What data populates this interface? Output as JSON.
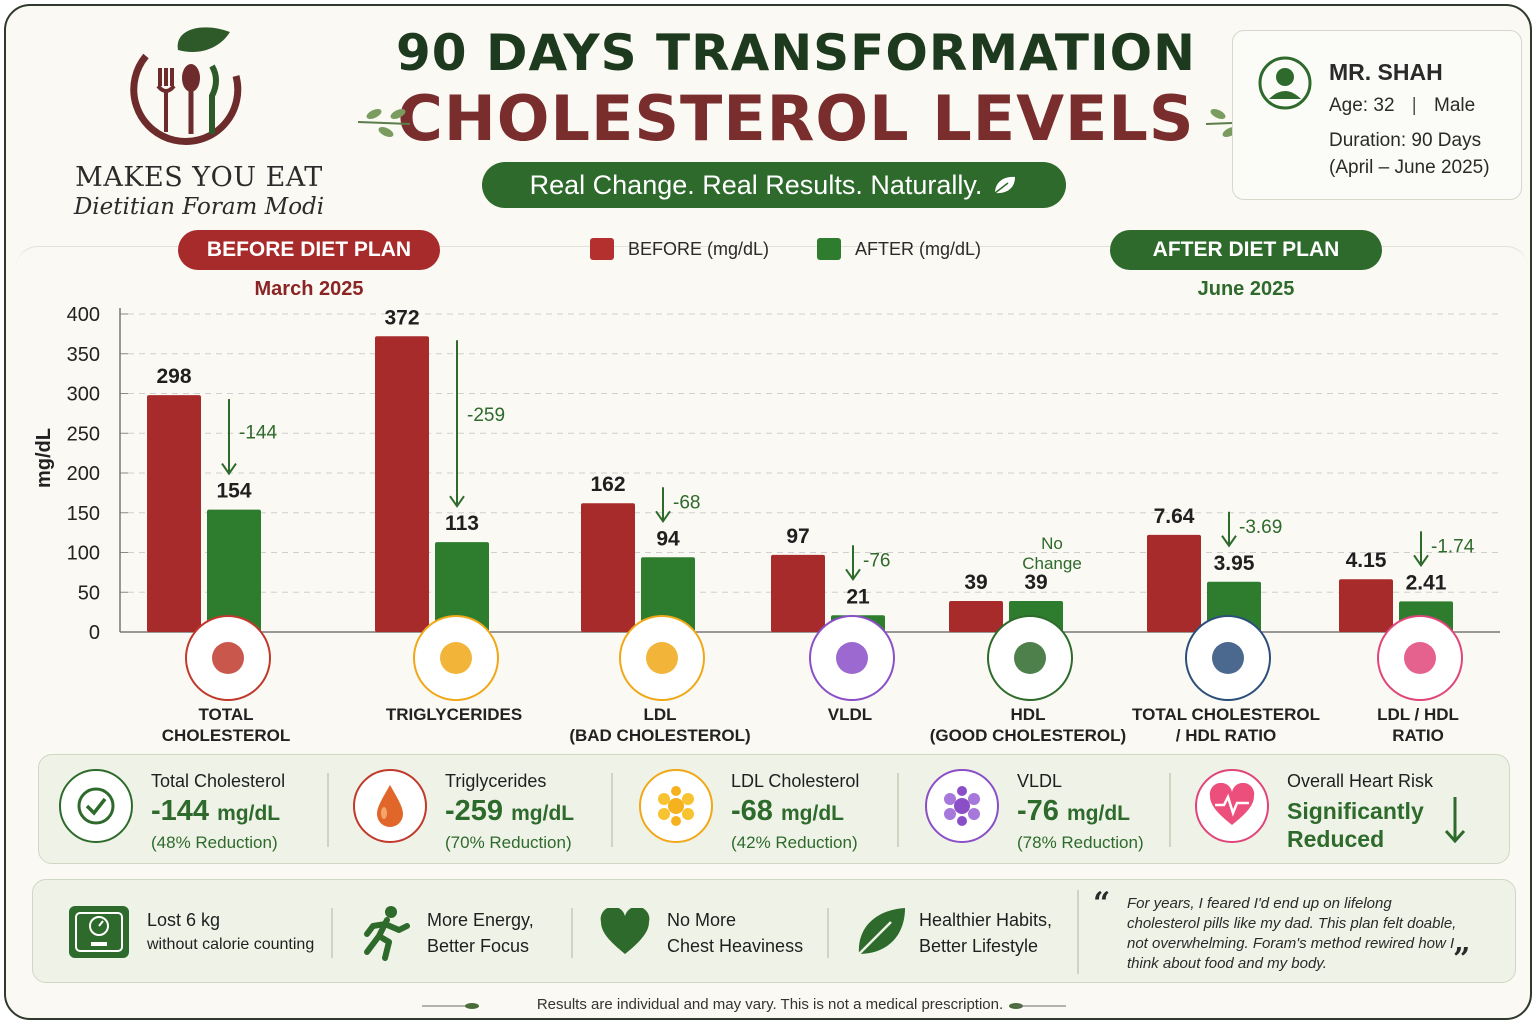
{
  "brand": {
    "name": "MAKES YOU EAT",
    "subtitle": "Dietitian Foram Modi"
  },
  "header": {
    "title_line1": "90 DAYS TRANSFORMATION",
    "title_line2": "CHOLESTEROL LEVELS",
    "tagline": "Real Change. Real Results. Naturally."
  },
  "profile": {
    "name": "MR. SHAH",
    "age_label": "Age:",
    "age": "32",
    "gender": "Male",
    "duration_label": "Duration:",
    "duration": "90 Days",
    "period": "(April – June 2025)"
  },
  "before_pill": {
    "label": "BEFORE DIET PLAN",
    "date": "March 2025"
  },
  "after_pill": {
    "label": "AFTER DIET PLAN",
    "date": "June 2025"
  },
  "legend": {
    "before": "BEFORE (mg/dL)",
    "after": "AFTER (mg/dL)"
  },
  "colors": {
    "before": "#a82b2b",
    "after": "#2e7d2e",
    "green_text": "#2e6a2c",
    "title_red": "#7a2d2d"
  },
  "chart_data": {
    "type": "bar",
    "ylabel": "mg/dL",
    "ylim": [
      0,
      400
    ],
    "yticks": [
      0,
      50,
      100,
      150,
      200,
      250,
      300,
      350,
      400
    ],
    "grid": true,
    "legend_position": "top-center",
    "categories": [
      {
        "line1": "TOTAL",
        "line2": "CHOLESTEROL",
        "icon": "heart-organ-icon"
      },
      {
        "line1": "TRIGLYCERIDES",
        "line2": "",
        "icon": "oil-drop-icon"
      },
      {
        "line1": "LDL",
        "line2": "(BAD CHOLESTEROL)",
        "icon": "fat-cells-icon"
      },
      {
        "line1": "VLDL",
        "line2": "",
        "icon": "particle-cluster-icon"
      },
      {
        "line1": "HDL",
        "line2": "(GOOD CHOLESTEROL)",
        "icon": "shield-check-icon"
      },
      {
        "line1": "TOTAL CHOLESTEROL",
        "line2": "/ HDL RATIO",
        "icon": "balance-scale-icon"
      },
      {
        "line1": "LDL / HDL",
        "line2": "RATIO",
        "icon": "heartbeat-icon"
      }
    ],
    "series": [
      {
        "name": "BEFORE (mg/dL)",
        "values": [
          298,
          372,
          162,
          97,
          39,
          7.64,
          4.15
        ],
        "labels": [
          "298",
          "372",
          "162",
          "97",
          "39",
          "7.64",
          "4.15"
        ]
      },
      {
        "name": "AFTER (mg/dL)",
        "values": [
          154,
          113,
          94,
          21,
          39,
          3.95,
          2.41
        ],
        "labels": [
          "154",
          "113",
          "94",
          "21",
          "39",
          "3.95",
          "2.41"
        ]
      }
    ],
    "changes": [
      "-144",
      "-259",
      "-68",
      "-76",
      "No Change",
      "-3.69",
      "-1.74"
    ]
  },
  "summary": [
    {
      "label": "Total Cholesterol",
      "value": "-144",
      "unit": "mg/dL",
      "note": "(48% Reduction)",
      "icon": "check-circle-icon"
    },
    {
      "label": "Triglycerides",
      "value": "-259",
      "unit": "mg/dL",
      "note": "(70% Reduction)",
      "icon": "drop-icon"
    },
    {
      "label": "LDL Cholesterol",
      "value": "-68",
      "unit": "mg/dL",
      "note": "(42% Reduction)",
      "icon": "fat-cells-icon"
    },
    {
      "label": "VLDL",
      "value": "-76",
      "unit": "mg/dL",
      "note": "(78% Reduction)",
      "icon": "particle-cluster-icon"
    },
    {
      "label": "Overall Heart Risk",
      "value1": "Significantly",
      "value2": "Reduced",
      "icon": "heartbeat-icon"
    }
  ],
  "benefits": [
    {
      "line1": "Lost 6 kg",
      "line2": "without calorie counting",
      "icon": "weighing-scale-icon"
    },
    {
      "line1": "More Energy,",
      "line2": "Better Focus",
      "icon": "running-person-icon"
    },
    {
      "line1": "No More",
      "line2": "Chest Heaviness",
      "icon": "heart-icon"
    },
    {
      "line1": "Healthier Habits,",
      "line2": "Better Lifestyle",
      "icon": "leaf-icon"
    }
  ],
  "testimonial": "For years, I feared I'd end up on lifelong cholesterol pills like my dad. This plan felt doable, not overwhelming. Foram's method rewired how I think about food and my body.",
  "disclaimer": "Results are individual and may vary. This is not a medical prescription."
}
